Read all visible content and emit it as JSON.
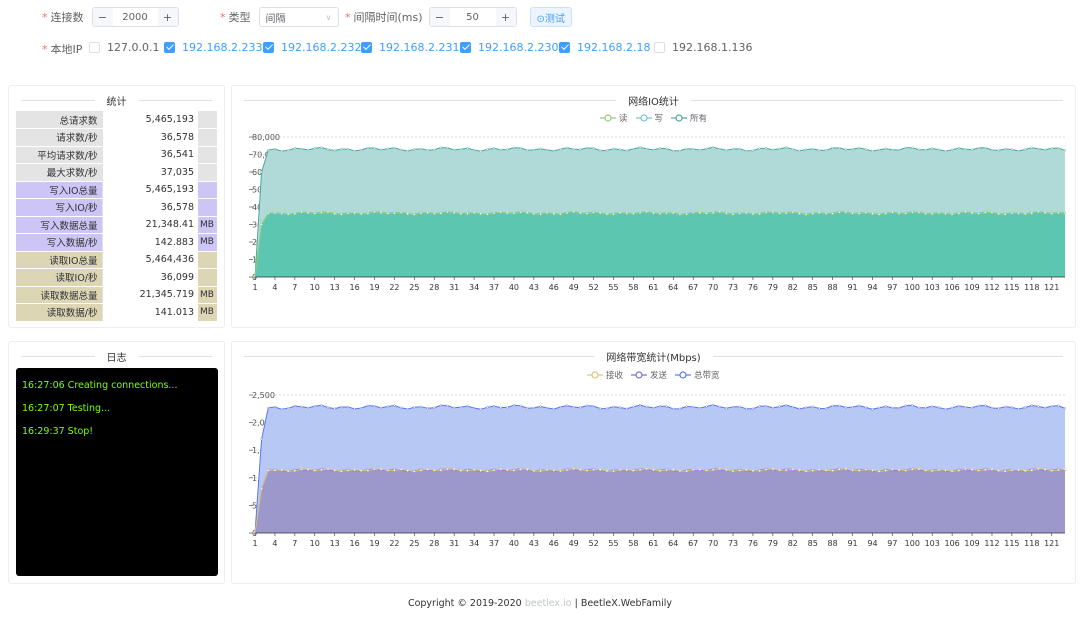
{
  "form": {
    "connections_label": "连接数",
    "connections_value": "2000",
    "type_label": "类型",
    "type_value": "间隔",
    "interval_label": "间隔时间(ms)",
    "interval_value": "50",
    "test_button": "⊙测试",
    "minus": "−",
    "plus": "+",
    "local_ip_label": "本地IP",
    "ips": [
      {
        "label": "127.0.0.1",
        "checked": false
      },
      {
        "label": "192.168.2.233",
        "checked": true
      },
      {
        "label": "192.168.2.232",
        "checked": true
      },
      {
        "label": "192.168.2.231",
        "checked": true
      },
      {
        "label": "192.168.2.230",
        "checked": true
      },
      {
        "label": "192.168.2.18",
        "checked": true
      },
      {
        "label": "192.168.1.136",
        "checked": false
      }
    ]
  },
  "stats": {
    "title": "统计",
    "rows": [
      {
        "label": "总请求数",
        "value": "5,465,193",
        "unit": "",
        "color": "#e4e4e4"
      },
      {
        "label": "请求数/秒",
        "value": "36,578",
        "unit": "",
        "color": "#e4e4e4"
      },
      {
        "label": "平均请求数/秒",
        "value": "36,541",
        "unit": "",
        "color": "#e4e4e4"
      },
      {
        "label": "最大求数/秒",
        "value": "37,035",
        "unit": "",
        "color": "#e4e4e4"
      },
      {
        "label": "写入IO总量",
        "value": "5,465,193",
        "unit": "",
        "color": "#ccc5f5"
      },
      {
        "label": "写入IO/秒",
        "value": "36,578",
        "unit": "",
        "color": "#ccc5f5"
      },
      {
        "label": "写入数据总量",
        "value": "21,348.41",
        "unit": "MB",
        "color": "#ccc5f5"
      },
      {
        "label": "写入数据/秒",
        "value": "142.883",
        "unit": "MB",
        "color": "#ccc5f5"
      },
      {
        "label": "读取IO总量",
        "value": "5,464,436",
        "unit": "",
        "color": "#dcd6b4"
      },
      {
        "label": "读取IO/秒",
        "value": "36,099",
        "unit": "",
        "color": "#dcd6b4"
      },
      {
        "label": "读取数据总量",
        "value": "21,345.719",
        "unit": "MB",
        "color": "#dcd6b4"
      },
      {
        "label": "读取数据/秒",
        "value": "141.013",
        "unit": "MB",
        "color": "#dcd6b4"
      }
    ]
  },
  "log": {
    "title": "日志",
    "lines": [
      "16:27:06 Creating connections...",
      "16:27:07 Testing...",
      "16:29:37 Stop!"
    ]
  },
  "chart_data": [
    {
      "type": "area",
      "title": "网络IO统计",
      "legend": [
        "读",
        "写",
        "所有"
      ],
      "legend_placement": "top-center",
      "x_ticks": [
        1,
        4,
        7,
        10,
        13,
        16,
        19,
        22,
        25,
        28,
        31,
        34,
        37,
        40,
        43,
        46,
        49,
        52,
        55,
        58,
        61,
        64,
        67,
        70,
        73,
        76,
        79,
        82,
        85,
        88,
        91,
        94,
        97,
        100,
        103,
        106,
        109,
        112,
        115,
        118,
        121
      ],
      "x_range": [
        1,
        123
      ],
      "ylim": [
        0,
        80000
      ],
      "y_ticks": [
        "0",
        "10,000",
        "20,000",
        "30,000",
        "40,000",
        "50,000",
        "60,000",
        "70,000",
        "80,000"
      ],
      "grid": true,
      "series": [
        {
          "name": "读",
          "color": "#91cc75",
          "fill": "",
          "start": [
            0,
            30000
          ],
          "level": 36500,
          "jitter": 500
        },
        {
          "name": "写",
          "color": "#73c0de",
          "fill": "#5cc6b0",
          "start": [
            0,
            30000
          ],
          "level": 36500,
          "jitter": 500
        },
        {
          "name": "所有",
          "color": "#4ba8a0",
          "fill": "#b0dad8",
          "start": [
            0,
            60000
          ],
          "level": 73000,
          "jitter": 700
        }
      ]
    },
    {
      "type": "area",
      "title": "网络带宽统计(Mbps)",
      "legend": [
        "接收",
        "发送",
        "总带宽"
      ],
      "legend_placement": "top-center",
      "x_ticks": [
        1,
        4,
        7,
        10,
        13,
        16,
        19,
        22,
        25,
        28,
        31,
        34,
        37,
        40,
        43,
        46,
        49,
        52,
        55,
        58,
        61,
        64,
        67,
        70,
        73,
        76,
        79,
        82,
        85,
        88,
        91,
        94,
        97,
        100,
        103,
        106,
        109,
        112,
        115,
        118,
        121
      ],
      "x_range": [
        1,
        123
      ],
      "ylim": [
        0,
        2500
      ],
      "y_ticks": [
        "0",
        "500",
        "1,000",
        "1,500",
        "2,000",
        "2,500"
      ],
      "grid": true,
      "series": [
        {
          "name": "接收",
          "color": "#e0c07a",
          "fill": "",
          "start": [
            0,
            800
          ],
          "level": 1140,
          "jitter": 15
        },
        {
          "name": "发送",
          "color": "#7a6ecf",
          "fill": "#9c98cc",
          "start": [
            0,
            800
          ],
          "level": 1140,
          "jitter": 15
        },
        {
          "name": "总带宽",
          "color": "#5b76e8",
          "fill": "#b8c8f5",
          "start": [
            0,
            1700
          ],
          "level": 2280,
          "jitter": 25
        }
      ]
    }
  ],
  "footer": {
    "prefix": "Copyright © 2019-2020 ",
    "brand": "beetlex.io",
    "suffix": " | BeetleX.WebFamily"
  }
}
